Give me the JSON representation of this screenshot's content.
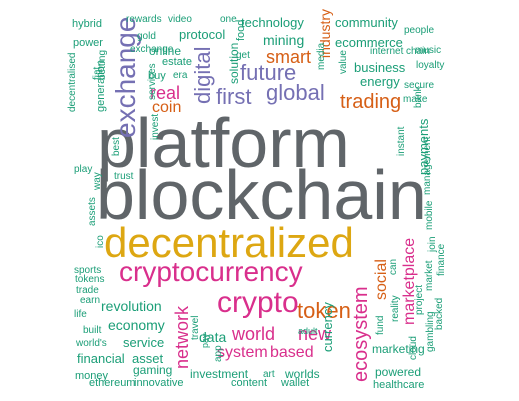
{
  "colors": {
    "gray": "#606569",
    "yellow": "#dda712",
    "magenta": "#d92f8c",
    "orange": "#d65f16",
    "purple": "#7570b3",
    "green": "#2b9b7a",
    "teal": "#1b9e77"
  },
  "words": [
    "platform",
    "blockchain",
    "decentralized",
    "cryptocurrency",
    "crypto",
    "exchange",
    "digital",
    "global",
    "first",
    "future",
    "trading",
    "token",
    "ecosystem",
    "network",
    "marketplace",
    "smart",
    "world",
    "new",
    "industry",
    "real",
    "coin",
    "social",
    "system",
    "based",
    "technology",
    "mining",
    "community",
    "ecommerce",
    "currency",
    "payments",
    "business",
    "energy",
    "revolution",
    "economy",
    "service",
    "financial",
    "asset",
    "data",
    "marketing",
    "powered",
    "investment",
    "worlds",
    "gaming",
    "content",
    "wallet",
    "healthcare",
    "money",
    "ethereum",
    "innovative",
    "art",
    "cloud",
    "solution",
    "online",
    "protocol",
    "hybrid",
    "rewards",
    "video",
    "one",
    "food",
    "power",
    "decentralised",
    "generation",
    "exchange-small",
    "estate",
    "buy",
    "era",
    "gold",
    "services",
    "get",
    "media",
    "value",
    "internet",
    "chain",
    "secure",
    "make",
    "bank",
    "people",
    "music",
    "loyalty",
    "instant",
    "management",
    "mobile",
    "join",
    "finance",
    "market",
    "project",
    "fund",
    "reality",
    "can",
    "gambling",
    "backed",
    "play",
    "trust",
    "best",
    "invest",
    "way",
    "assets",
    "ico",
    "sports",
    "tokens",
    "trade",
    "earn",
    "life",
    "built",
    "worlds-small",
    "fiat",
    "betting",
    "adult",
    "app",
    "travel",
    "pay",
    "sales"
  ]
}
